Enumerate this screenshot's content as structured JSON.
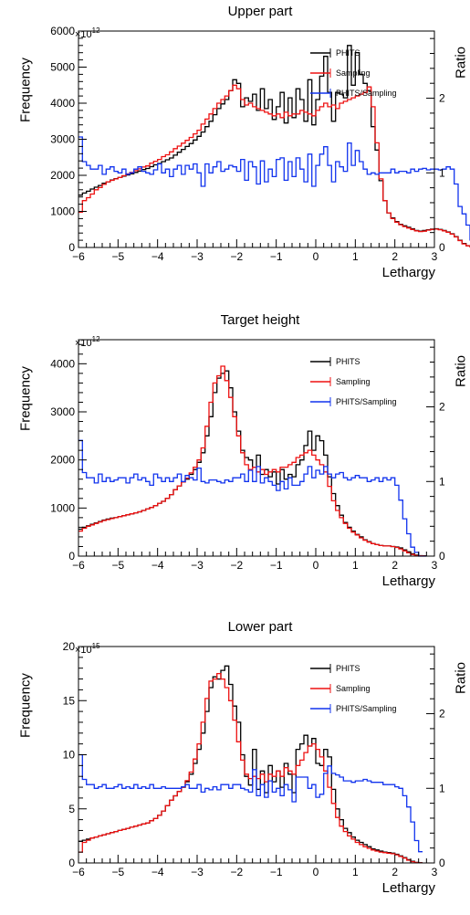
{
  "chart_data": [
    {
      "type": "line",
      "title": "Upper part",
      "xlabel": "Lethargy",
      "ylabel": "Frequency",
      "y2label": "Ratio",
      "y_multiplier_base": "×10",
      "y_multiplier_exp": "12",
      "xlim": [
        -6,
        3
      ],
      "ylim": [
        0,
        6000
      ],
      "y2lim": [
        0,
        2.9
      ],
      "x_ticks": [
        "−6",
        "−5",
        "−4",
        "−3",
        "−2",
        "−1",
        "0",
        "1",
        "2",
        "3"
      ],
      "y_ticks": [
        "0",
        "1000",
        "2000",
        "3000",
        "4000",
        "5000",
        "6000"
      ],
      "y_tick_values": [
        0,
        1000,
        2000,
        3000,
        4000,
        5000,
        6000
      ],
      "y2_ticks": [
        "0",
        "1",
        "2"
      ],
      "y2_tick_values": [
        0,
        1,
        2
      ],
      "legend_position": "top-right",
      "series": [
        {
          "name": "PHITS",
          "color": "#000000",
          "axis": "left",
          "x_start": -6,
          "bin_width": 0.1,
          "values": [
            1450,
            1510,
            1560,
            1620,
            1670,
            1720,
            1780,
            1820,
            1870,
            1910,
            1940,
            1980,
            2010,
            2040,
            2080,
            2120,
            2160,
            2190,
            2240,
            2290,
            2330,
            2380,
            2430,
            2480,
            2560,
            2640,
            2720,
            2800,
            2880,
            2980,
            3080,
            3200,
            3350,
            3500,
            3680,
            3850,
            3980,
            4100,
            4350,
            4650,
            4550,
            3900,
            4150,
            4050,
            4250,
            3800,
            4400,
            3850,
            4100,
            3550,
            3900,
            4300,
            3450,
            4150,
            3600,
            4400,
            4100,
            3500,
            4650,
            3400,
            4100,
            4750,
            5300,
            4300,
            3500,
            4300,
            4250,
            4150,
            5600,
            4500,
            5400,
            4800,
            4550,
            4350,
            3350,
            2700,
            1850,
            1300,
            960,
            820,
            720,
            640,
            600,
            560,
            520,
            470,
            450,
            470,
            490,
            510,
            520,
            500,
            470,
            430,
            380,
            300,
            200,
            110,
            50,
            20
          ]
        },
        {
          "name": "Sampling",
          "color": "#ee1111",
          "axis": "left",
          "x_start": -6,
          "bin_width": 0.1,
          "values": [
            980,
            1300,
            1380,
            1480,
            1600,
            1660,
            1750,
            1820,
            1860,
            1900,
            1940,
            1990,
            2040,
            2080,
            2130,
            2180,
            2230,
            2260,
            2340,
            2390,
            2440,
            2520,
            2570,
            2650,
            2740,
            2810,
            2890,
            2970,
            3050,
            3150,
            3250,
            3420,
            3560,
            3700,
            3850,
            4000,
            4100,
            4200,
            4350,
            4500,
            4400,
            4100,
            3950,
            4000,
            3900,
            3850,
            3800,
            3750,
            3700,
            3650,
            3700,
            3600,
            3750,
            3650,
            3700,
            3700,
            3800,
            3750,
            3700,
            3650,
            3800,
            3900,
            4000,
            3900,
            3950,
            3850,
            4000,
            4050,
            4100,
            4150,
            4200,
            4250,
            4300,
            4450,
            3900,
            2900,
            1900,
            1300,
            960,
            800,
            700,
            630,
            580,
            540,
            500,
            460,
            440,
            450,
            480,
            500,
            510,
            490,
            460,
            420,
            370,
            290,
            190,
            100,
            45,
            15
          ]
        },
        {
          "name": "PHITS/Sampling",
          "color": "#1133ee",
          "axis": "right",
          "x_start": -6,
          "bin_width": 0.1,
          "values": [
            1.48,
            1.15,
            1.1,
            1.05,
            1.05,
            1.1,
            0.98,
            1.05,
            1.08,
            1.02,
            1.0,
            1.05,
            0.98,
            1.0,
            1.05,
            1.08,
            1.02,
            1.0,
            0.98,
            1.04,
            1.12,
            1.0,
            1.05,
            0.95,
            1.05,
            1.1,
            0.98,
            1.1,
            1.05,
            1.12,
            1.0,
            0.82,
            1.12,
            1.0,
            1.08,
            1.15,
            1.02,
            1.05,
            1.1,
            1.08,
            1.02,
            1.18,
            0.9,
            1.15,
            1.08,
            0.85,
            1.16,
            0.88,
            1.05,
            0.95,
            1.18,
            1.2,
            0.9,
            1.15,
            0.95,
            1.2,
            1.05,
            0.88,
            1.25,
            0.82,
            1.1,
            1.25,
            1.35,
            1.1,
            0.88,
            1.15,
            1.08,
            1.02,
            1.4,
            1.1,
            1.3,
            1.15,
            1.05,
            0.98,
            1.0,
            0.98,
            1.0,
            1.0,
            1.0,
            1.05,
            1.0,
            1.02,
            1.02,
            1.0,
            1.05,
            1.02,
            1.05,
            1.06,
            1.04,
            1.05,
            1.05,
            1.04,
            1.05,
            1.08,
            1.05,
            0.85,
            0.55,
            0.45,
            0.3,
            0.1
          ]
        }
      ],
      "legend": [
        "PHITS",
        "Sampling",
        "PHITS/Sampling"
      ]
    },
    {
      "type": "line",
      "title": "Target height",
      "xlabel": "Lethargy",
      "ylabel": "Frequency",
      "y2label": "Ratio",
      "y_multiplier_base": "×10",
      "y_multiplier_exp": "12",
      "xlim": [
        -6,
        3
      ],
      "ylim": [
        0,
        4500
      ],
      "y2lim": [
        0,
        2.9
      ],
      "x_ticks": [
        "−6",
        "−5",
        "−4",
        "−3",
        "−2",
        "−1",
        "0",
        "1",
        "2",
        "3"
      ],
      "y_ticks": [
        "0",
        "1000",
        "2000",
        "3000",
        "4000"
      ],
      "y_tick_values": [
        0,
        1000,
        2000,
        3000,
        4000
      ],
      "y2_ticks": [
        "0",
        "1",
        "2"
      ],
      "y2_tick_values": [
        0,
        1,
        2
      ],
      "legend_position": "top-right",
      "series": [
        {
          "name": "PHITS",
          "color": "#000000",
          "axis": "left",
          "x_start": -6,
          "bin_width": 0.1,
          "values": [
            560,
            600,
            630,
            660,
            690,
            720,
            750,
            770,
            790,
            800,
            820,
            840,
            860,
            880,
            900,
            920,
            950,
            980,
            1010,
            1050,
            1100,
            1140,
            1200,
            1280,
            1380,
            1460,
            1540,
            1600,
            1700,
            1800,
            1950,
            2150,
            2500,
            2900,
            3400,
            3700,
            3800,
            3850,
            3500,
            3000,
            2600,
            2200,
            2050,
            2000,
            1850,
            2100,
            1700,
            1800,
            1650,
            1750,
            1500,
            1800,
            1600,
            1700,
            1650,
            1900,
            2000,
            2300,
            2600,
            2200,
            2500,
            2400,
            2100,
            1650,
            1300,
            1050,
            850,
            700,
            600,
            520,
            450,
            400,
            340,
            300,
            260,
            240,
            220,
            210,
            210,
            200,
            190,
            170,
            130,
            90,
            50,
            20,
            10,
            5
          ]
        },
        {
          "name": "Sampling",
          "color": "#ee1111",
          "axis": "left",
          "x_start": -6,
          "bin_width": 0.1,
          "values": [
            520,
            580,
            620,
            650,
            680,
            710,
            740,
            760,
            780,
            800,
            820,
            840,
            860,
            880,
            900,
            920,
            950,
            980,
            1010,
            1050,
            1100,
            1140,
            1200,
            1280,
            1380,
            1460,
            1540,
            1620,
            1730,
            1850,
            2000,
            2250,
            2700,
            3200,
            3600,
            3750,
            3950,
            3650,
            3300,
            2900,
            2500,
            2150,
            1900,
            1800,
            1850,
            1750,
            1800,
            1700,
            1750,
            1800,
            1750,
            1850,
            1850,
            1900,
            1950,
            2050,
            2100,
            2150,
            2200,
            2100,
            2000,
            1900,
            1750,
            1450,
            1150,
            950,
            800,
            680,
            580,
            500,
            440,
            380,
            330,
            290,
            260,
            240,
            220,
            210,
            210,
            200,
            180,
            150,
            110,
            70,
            35,
            12,
            5,
            2
          ]
        },
        {
          "name": "PHITS/Sampling",
          "color": "#1133ee",
          "axis": "right",
          "x_start": -6,
          "bin_width": 0.1,
          "values": [
            1.55,
            1.12,
            1.05,
            1.05,
            0.98,
            1.1,
            1.0,
            1.05,
            1.0,
            1.02,
            1.05,
            1.05,
            0.98,
            1.05,
            1.1,
            1.02,
            1.05,
            1.0,
            0.95,
            1.1,
            1.05,
            1.0,
            1.05,
            1.0,
            1.05,
            1.1,
            1.0,
            1.08,
            1.05,
            1.02,
            1.18,
            1.0,
            0.98,
            1.02,
            1.02,
            1.0,
            0.98,
            1.02,
            1.0,
            1.05,
            1.05,
            1.1,
            1.0,
            1.15,
            1.0,
            1.2,
            0.98,
            1.05,
            1.0,
            0.95,
            0.88,
            1.0,
            0.9,
            1.05,
            0.95,
            0.95,
            1.0,
            1.1,
            1.2,
            1.05,
            1.15,
            1.1,
            1.2,
            1.1,
            1.05,
            1.1,
            1.12,
            1.05,
            1.02,
            1.05,
            1.08,
            1.05,
            1.05,
            1.0,
            1.02,
            1.05,
            1.0,
            1.05,
            1.02,
            1.05,
            0.95,
            0.75,
            0.5,
            0.3,
            0.12,
            0.05,
            0.0,
            0.0
          ]
        }
      ],
      "legend": [
        "PHITS",
        "Sampling",
        "PHITS/Sampling"
      ]
    },
    {
      "type": "line",
      "title": "Lower part",
      "xlabel": "Lethargy",
      "ylabel": "Frequency",
      "y2label": "Ratio",
      "y_multiplier_base": "×10",
      "y_multiplier_exp": "15",
      "xlim": [
        -6,
        3
      ],
      "ylim": [
        0,
        20
      ],
      "y2lim": [
        0,
        2.9
      ],
      "x_ticks": [
        "−6",
        "−5",
        "−4",
        "−3",
        "−2",
        "−1",
        "0",
        "1",
        "2",
        "3"
      ],
      "y_ticks": [
        "0",
        "5",
        "10",
        "15",
        "20"
      ],
      "y_tick_values": [
        0,
        5,
        10,
        15,
        20
      ],
      "y2_ticks": [
        "0",
        "1",
        "2"
      ],
      "y2_tick_values": [
        0,
        1,
        2
      ],
      "legend_position": "top-right",
      "series": [
        {
          "name": "PHITS",
          "color": "#000000",
          "axis": "left",
          "x_start": -6,
          "bin_width": 0.1,
          "values": [
            2.0,
            2.1,
            2.2,
            2.3,
            2.4,
            2.5,
            2.6,
            2.7,
            2.8,
            2.9,
            3.0,
            3.1,
            3.2,
            3.3,
            3.4,
            3.5,
            3.6,
            3.7,
            3.9,
            4.1,
            4.4,
            4.8,
            5.3,
            5.8,
            6.2,
            6.6,
            7.0,
            7.5,
            8.2,
            9.2,
            10.5,
            12.0,
            14.0,
            16.2,
            17.2,
            17.0,
            17.8,
            18.2,
            16.5,
            14.5,
            13.0,
            10.0,
            8.0,
            7.2,
            10.5,
            6.8,
            8.5,
            6.5,
            9.0,
            7.5,
            8.5,
            7.0,
            9.2,
            8.2,
            6.5,
            10.5,
            11.0,
            11.8,
            10.8,
            11.5,
            9.2,
            9.0,
            10.5,
            9.8,
            6.8,
            5.0,
            4.0,
            3.2,
            2.8,
            2.4,
            2.1,
            1.9,
            1.7,
            1.5,
            1.3,
            1.2,
            1.1,
            1.0,
            0.95,
            0.9,
            0.8,
            0.65,
            0.5,
            0.3,
            0.15,
            0.05,
            0.02
          ]
        },
        {
          "name": "Sampling",
          "color": "#ee1111",
          "axis": "left",
          "x_start": -6,
          "bin_width": 0.1,
          "values": [
            1.0,
            1.9,
            2.1,
            2.3,
            2.4,
            2.5,
            2.6,
            2.7,
            2.8,
            2.9,
            3.0,
            3.1,
            3.2,
            3.3,
            3.4,
            3.5,
            3.6,
            3.7,
            3.9,
            4.1,
            4.4,
            4.8,
            5.3,
            5.8,
            6.2,
            6.6,
            7.0,
            7.6,
            8.4,
            9.6,
            11.0,
            13.0,
            15.2,
            16.8,
            17.0,
            17.5,
            17.0,
            16.2,
            15.0,
            13.2,
            11.2,
            9.5,
            8.2,
            7.8,
            8.0,
            7.8,
            8.2,
            7.5,
            8.2,
            8.0,
            8.5,
            8.0,
            8.8,
            8.5,
            8.2,
            9.0,
            9.5,
            10.2,
            10.8,
            11.0,
            10.5,
            9.8,
            8.5,
            7.0,
            5.5,
            4.2,
            3.4,
            2.9,
            2.5,
            2.2,
            1.9,
            1.7,
            1.5,
            1.35,
            1.2,
            1.1,
            1.0,
            0.95,
            0.9,
            0.85,
            0.75,
            0.6,
            0.45,
            0.25,
            0.12,
            0.04,
            0.01
          ]
        },
        {
          "name": "PHITS/Sampling",
          "color": "#1133ee",
          "axis": "right",
          "x_start": -6,
          "bin_width": 0.1,
          "values": [
            1.45,
            1.12,
            1.05,
            1.05,
            1.0,
            1.02,
            1.05,
            1.0,
            1.0,
            1.02,
            1.05,
            1.0,
            1.02,
            1.0,
            1.05,
            1.0,
            1.02,
            1.0,
            1.05,
            1.0,
            1.0,
            1.02,
            1.0,
            1.0,
            1.0,
            1.0,
            1.02,
            1.05,
            1.0,
            1.0,
            1.05,
            0.95,
            1.0,
            0.98,
            1.02,
            0.98,
            1.05,
            1.05,
            1.0,
            1.05,
            1.05,
            1.0,
            0.98,
            0.95,
            1.25,
            0.9,
            1.05,
            0.88,
            1.1,
            0.95,
            1.0,
            0.9,
            1.05,
            0.98,
            0.82,
            1.15,
            1.15,
            1.15,
            1.0,
            1.05,
            0.88,
            0.92,
            1.2,
            1.3,
            1.2,
            1.18,
            1.15,
            1.1,
            1.1,
            1.08,
            1.1,
            1.1,
            1.12,
            1.1,
            1.08,
            1.08,
            1.08,
            1.05,
            1.05,
            1.05,
            1.02,
            1.0,
            0.9,
            0.75,
            0.55,
            0.3,
            0.15
          ]
        }
      ],
      "legend": [
        "PHITS",
        "Sampling",
        "PHITS/Sampling"
      ]
    }
  ]
}
